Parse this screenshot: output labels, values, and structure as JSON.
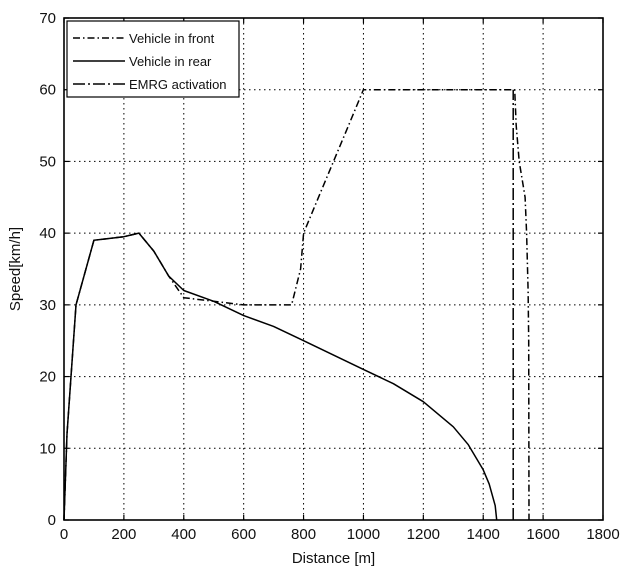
{
  "chart_data": {
    "type": "line",
    "title": "",
    "xlabel": "Distance [m]",
    "ylabel": "Speed[km/h]",
    "xlim": [
      0,
      1800
    ],
    "ylim": [
      0,
      70
    ],
    "xticks": [
      0,
      200,
      400,
      600,
      800,
      1000,
      1200,
      1400,
      1600,
      1800
    ],
    "yticks": [
      0,
      10,
      20,
      30,
      40,
      50,
      60,
      70
    ],
    "grid": true,
    "legend_position": "top-left",
    "series": [
      {
        "name": "Vehicle in front",
        "style": "dash-dot",
        "color": "#000000",
        "points": [
          [
            0,
            0
          ],
          [
            10,
            12
          ],
          [
            40,
            30
          ],
          [
            100,
            39
          ],
          [
            200,
            39.5
          ],
          [
            250,
            40
          ],
          [
            300,
            37.5
          ],
          [
            350,
            34
          ],
          [
            400,
            31
          ],
          [
            500,
            30.5
          ],
          [
            600,
            30
          ],
          [
            700,
            30
          ],
          [
            760,
            30
          ],
          [
            790,
            35
          ],
          [
            800,
            40
          ],
          [
            850,
            45
          ],
          [
            900,
            50
          ],
          [
            950,
            55
          ],
          [
            1000,
            60
          ],
          [
            1100,
            60
          ],
          [
            1200,
            60
          ],
          [
            1300,
            60
          ],
          [
            1400,
            60
          ],
          [
            1505,
            60
          ],
          [
            1510,
            55
          ],
          [
            1520,
            50
          ],
          [
            1540,
            45
          ],
          [
            1545,
            40
          ],
          [
            1550,
            32
          ],
          [
            1552,
            25
          ],
          [
            1553,
            0
          ]
        ]
      },
      {
        "name": "Vehicle in rear",
        "style": "solid",
        "color": "#000000",
        "points": [
          [
            0,
            0
          ],
          [
            10,
            12
          ],
          [
            40,
            30
          ],
          [
            100,
            39
          ],
          [
            200,
            39.5
          ],
          [
            250,
            40
          ],
          [
            300,
            37.5
          ],
          [
            350,
            34
          ],
          [
            400,
            32
          ],
          [
            500,
            30.5
          ],
          [
            600,
            28.5
          ],
          [
            700,
            27
          ],
          [
            800,
            25
          ],
          [
            900,
            23
          ],
          [
            1000,
            21
          ],
          [
            1100,
            19
          ],
          [
            1200,
            16.5
          ],
          [
            1300,
            13
          ],
          [
            1350,
            10.5
          ],
          [
            1400,
            7
          ],
          [
            1420,
            5
          ],
          [
            1440,
            2
          ],
          [
            1445,
            0
          ]
        ]
      },
      {
        "name": "EMRG activation",
        "style": "dash-dot-long",
        "color": "#000000",
        "points": [
          [
            1500,
            0
          ],
          [
            1500,
            60
          ]
        ]
      }
    ]
  }
}
